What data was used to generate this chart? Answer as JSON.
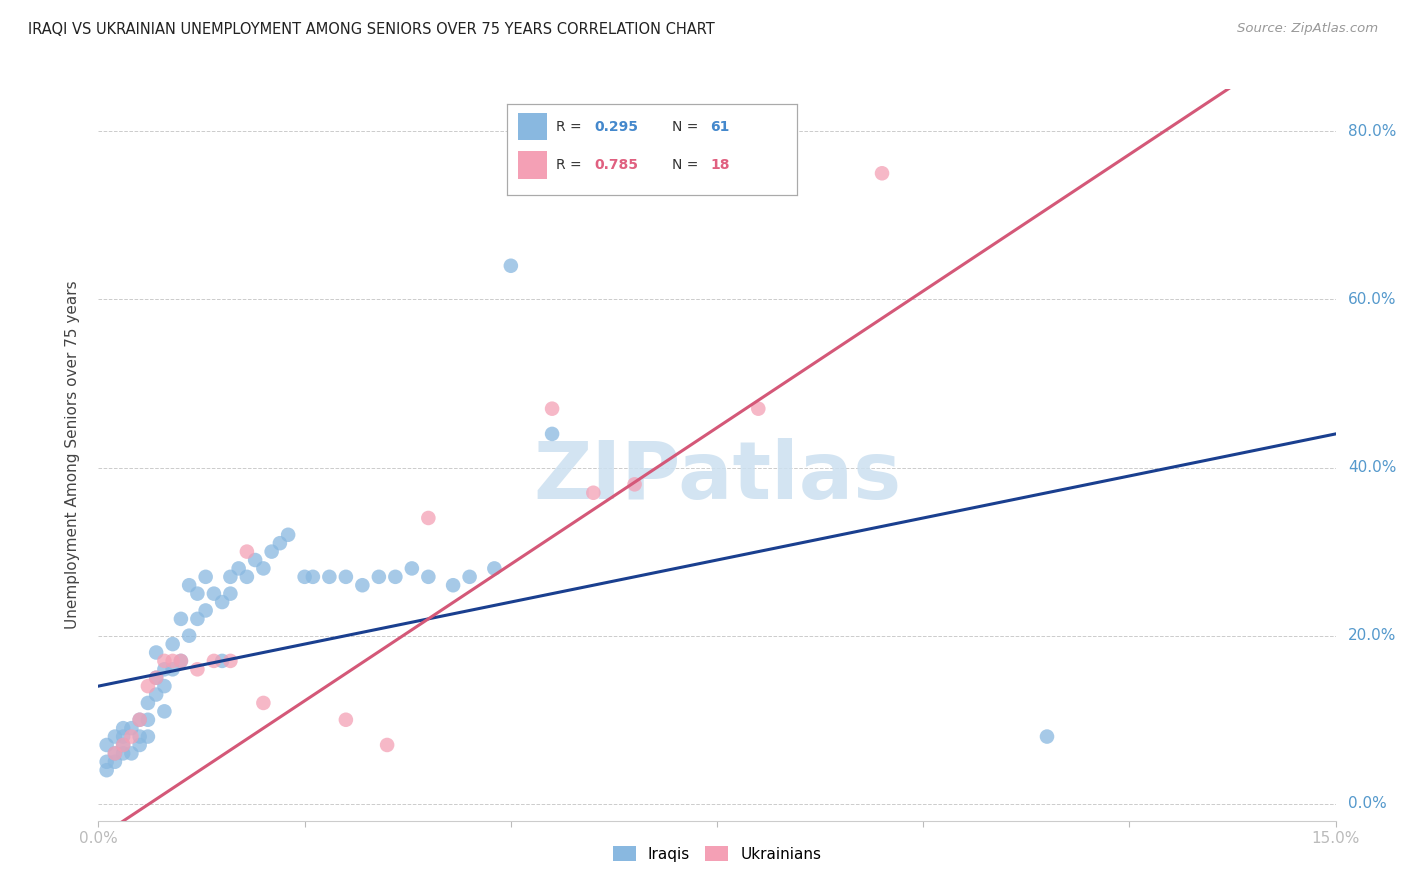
{
  "title": "IRAQI VS UKRAINIAN UNEMPLOYMENT AMONG SENIORS OVER 75 YEARS CORRELATION CHART",
  "source": "Source: ZipAtlas.com",
  "ylabel": "Unemployment Among Seniors over 75 years",
  "ylabel_right_ticks": [
    "80.0%",
    "60.0%",
    "40.0%",
    "20.0%",
    "0.0%"
  ],
  "ylabel_right_vals": [
    0.8,
    0.6,
    0.4,
    0.2,
    0.0
  ],
  "xlim": [
    0.0,
    0.15
  ],
  "ylim": [
    -0.02,
    0.85
  ],
  "iraqis_color": "#89b8e0",
  "ukrainians_color": "#f4a0b5",
  "trendline_iraqis_color": "#1a3f8f",
  "trendline_ukrainians_color": "#d45878",
  "watermark_color": "#cce0f0",
  "iraqis_x": [
    0.001,
    0.001,
    0.001,
    0.002,
    0.002,
    0.002,
    0.003,
    0.003,
    0.003,
    0.003,
    0.004,
    0.004,
    0.005,
    0.005,
    0.005,
    0.006,
    0.006,
    0.006,
    0.007,
    0.007,
    0.007,
    0.008,
    0.008,
    0.008,
    0.009,
    0.009,
    0.01,
    0.01,
    0.011,
    0.011,
    0.012,
    0.012,
    0.013,
    0.013,
    0.014,
    0.015,
    0.015,
    0.016,
    0.016,
    0.017,
    0.018,
    0.019,
    0.02,
    0.021,
    0.022,
    0.023,
    0.025,
    0.026,
    0.028,
    0.03,
    0.032,
    0.034,
    0.036,
    0.038,
    0.04,
    0.043,
    0.045,
    0.048,
    0.05,
    0.055,
    0.115
  ],
  "iraqis_y": [
    0.05,
    0.07,
    0.04,
    0.06,
    0.08,
    0.05,
    0.06,
    0.08,
    0.09,
    0.07,
    0.06,
    0.09,
    0.08,
    0.1,
    0.07,
    0.1,
    0.12,
    0.08,
    0.15,
    0.13,
    0.18,
    0.14,
    0.16,
    0.11,
    0.16,
    0.19,
    0.17,
    0.22,
    0.2,
    0.26,
    0.22,
    0.25,
    0.23,
    0.27,
    0.25,
    0.17,
    0.24,
    0.25,
    0.27,
    0.28,
    0.27,
    0.29,
    0.28,
    0.3,
    0.31,
    0.32,
    0.27,
    0.27,
    0.27,
    0.27,
    0.26,
    0.27,
    0.27,
    0.28,
    0.27,
    0.26,
    0.27,
    0.28,
    0.64,
    0.44,
    0.08
  ],
  "ukrainians_x": [
    0.002,
    0.003,
    0.004,
    0.005,
    0.006,
    0.007,
    0.008,
    0.009,
    0.01,
    0.012,
    0.014,
    0.016,
    0.018,
    0.02,
    0.03,
    0.035,
    0.04,
    0.055,
    0.06,
    0.065,
    0.08,
    0.095
  ],
  "ukrainians_y": [
    0.06,
    0.07,
    0.08,
    0.1,
    0.14,
    0.15,
    0.17,
    0.17,
    0.17,
    0.16,
    0.17,
    0.17,
    0.3,
    0.12,
    0.1,
    0.07,
    0.34,
    0.47,
    0.37,
    0.38,
    0.47,
    0.75
  ],
  "trendline_iraqis": {
    "slope": 2.0,
    "intercept": 0.14
  },
  "trendline_ukrainians": {
    "slope": 6.5,
    "intercept": -0.04
  },
  "xtick_positions": [
    0.0,
    0.025,
    0.05,
    0.075,
    0.1,
    0.125,
    0.15
  ],
  "xtick_labels": [
    "0.0%",
    "",
    "",
    "",
    "",
    "",
    "15.0%"
  ]
}
